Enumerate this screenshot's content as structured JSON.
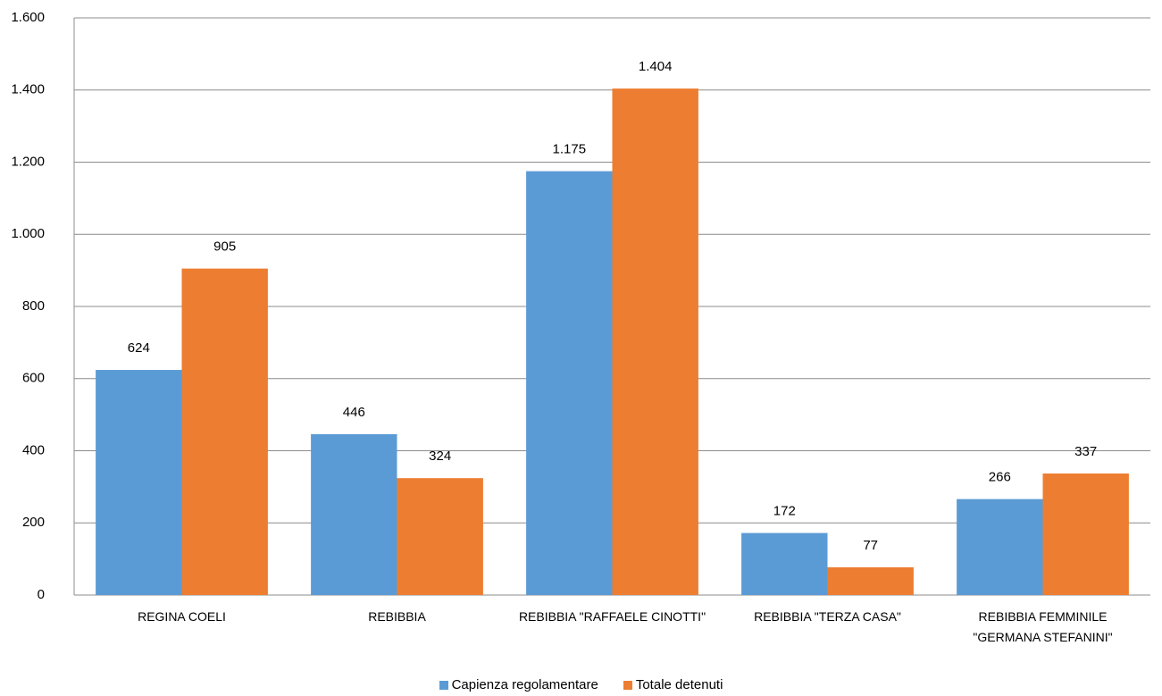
{
  "chart_data": {
    "type": "bar",
    "categories": [
      "REGINA COELI",
      "REBIBBIA",
      "REBIBBIA \"RAFFAELE CINOTTI\"",
      "REBIBBIA \"TERZA CASA\"",
      "REBIBBIA FEMMINILE \"GERMANA STEFANINI\""
    ],
    "series": [
      {
        "name": "Capienza regolamentare",
        "color": "#5b9bd5",
        "values": [
          624,
          446,
          1175,
          172,
          266
        ],
        "value_labels": [
          "624",
          "446",
          "1.175",
          "172",
          "266"
        ]
      },
      {
        "name": "Totale detenuti",
        "color": "#ed7d31",
        "values": [
          905,
          324,
          1404,
          77,
          337
        ],
        "value_labels": [
          "905",
          "324",
          "1.404",
          "77",
          "337"
        ]
      }
    ],
    "ylim": [
      0,
      1600
    ],
    "yticks": [
      0,
      200,
      400,
      600,
      800,
      {
        "value": 1000,
        "label": "1.000"
      },
      {
        "value": 1200,
        "label": "1.200"
      },
      {
        "value": 1400,
        "label": "1.400"
      },
      {
        "value": 1600,
        "label": "1.600"
      }
    ],
    "grid": true,
    "legend": "bottom"
  }
}
